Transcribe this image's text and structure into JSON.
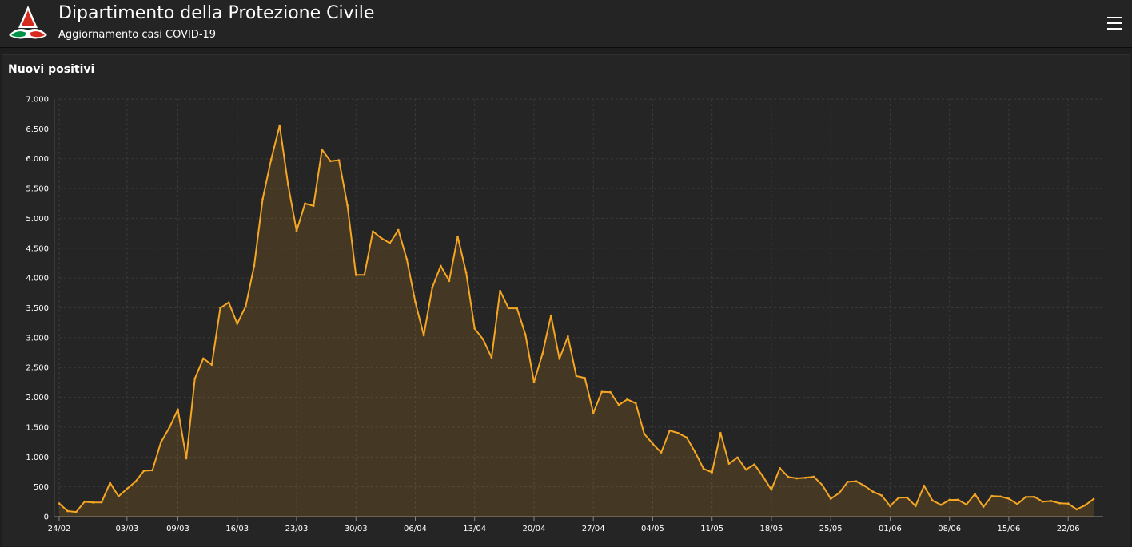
{
  "header": {
    "title": "Dipartimento della Protezione Civile",
    "subtitle": "Aggiornamento casi COVID-19",
    "menu_icon": "hamburger-menu-icon",
    "logo_icon": "protezione-civile-logo-icon"
  },
  "panel": {
    "title": "Nuovi positivi"
  },
  "colors": {
    "line": "#f5a623",
    "fill": "#f5a623",
    "background": "#252525",
    "grid": "#3a3a3a"
  },
  "chart_data": {
    "type": "area",
    "title": "Nuovi positivi",
    "xlabel": "",
    "ylabel": "",
    "ylim": [
      0,
      7000
    ],
    "yticks": [
      0,
      500,
      1000,
      1500,
      2000,
      2500,
      3000,
      3500,
      4000,
      4500,
      5000,
      5500,
      6000,
      6500,
      7000
    ],
    "ytick_labels": [
      "0",
      "500",
      "1.000",
      "1.500",
      "2.000",
      "2.500",
      "3.000",
      "3.500",
      "4.000",
      "4.500",
      "5.000",
      "5.500",
      "6.000",
      "6.500",
      "7.000"
    ],
    "x_start": "2020-02-24",
    "x_tick_labels": [
      "24/02",
      "03/03",
      "09/03",
      "16/03",
      "23/03",
      "30/03",
      "06/04",
      "13/04",
      "20/04",
      "27/04",
      "04/05",
      "11/05",
      "18/05",
      "25/05",
      "01/06",
      "08/06",
      "15/06",
      "22/06"
    ],
    "x_tick_indices": [
      0,
      8,
      14,
      21,
      28,
      35,
      42,
      49,
      56,
      63,
      70,
      77,
      84,
      91,
      98,
      105,
      112,
      119
    ],
    "grid": true,
    "legend": false,
    "series": [
      {
        "values": [
          221,
          93,
          78,
          250,
          238,
          240,
          566,
          342,
          466,
          587,
          769,
          778,
          1247,
          1492,
          1797,
          977,
          2313,
          2651,
          2547,
          3497,
          3590,
          3233,
          3526,
          4207,
          5322,
          5986,
          6557,
          5560,
          4789,
          5249,
          5210,
          6153,
          5959,
          5974,
          5217,
          4050,
          4053,
          4782,
          4668,
          4585,
          4805,
          4316,
          3599,
          3039,
          3836,
          4204,
          3951,
          4694,
          4092,
          3153,
          2972,
          2667,
          3786,
          3493,
          3491,
          3047,
          2256,
          2729,
          3370,
          2646,
          3021,
          2357,
          2324,
          1739,
          2091,
          2086,
          1872,
          1965,
          1900,
          1389,
          1221,
          1075,
          1444,
          1401,
          1327,
          1083,
          802,
          744,
          1402,
          888,
          992,
          789,
          875,
          675,
          451,
          813,
          665,
          642,
          652,
          669,
          531,
          300,
          397,
          584,
          593,
          516,
          416,
          355,
          178,
          318,
          321,
          177,
          518,
          270,
          197,
          280,
          283,
          202,
          379,
          163,
          346,
          338,
          301,
          210,
          329,
          333,
          251,
          262,
          224,
          218,
          122,
          190,
          296
        ]
      }
    ]
  }
}
